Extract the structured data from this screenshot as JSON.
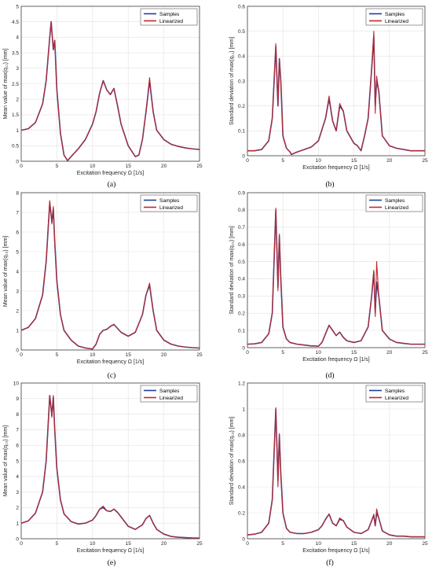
{
  "colors": {
    "samples": "#1f3f9e",
    "linearized": "#c0282a",
    "grid": "#e2e2e2",
    "axis": "#262626"
  },
  "chart_data": [
    {
      "type": "line",
      "panel_label": "(a)",
      "xlabel": "Excitation frequency Ω [1/s]",
      "ylabel": "Mean value of max(q₁₁) [mm]",
      "xlim": [
        0,
        25
      ],
      "ylim": [
        0,
        5
      ],
      "xticks": [
        "0",
        "5",
        "10",
        "15",
        "20",
        "25"
      ],
      "yticks": [
        "0",
        "0.5",
        "1",
        "1.5",
        "2",
        "2.5",
        "3",
        "3.5",
        "4",
        "4.5",
        "5"
      ],
      "grid": true,
      "legend_position": "top-right",
      "x": [
        0,
        1,
        2,
        3,
        3.5,
        4,
        4.2,
        4.5,
        4.7,
        5,
        5.5,
        6,
        6.5,
        7,
        8,
        9,
        10,
        10.5,
        11,
        11.5,
        12,
        12.5,
        13,
        13.5,
        14,
        15,
        16,
        16.5,
        17,
        17.5,
        18,
        18.5,
        19,
        20,
        21,
        22,
        23,
        24,
        25
      ],
      "series": [
        {
          "name": "Samples",
          "values": [
            1.0,
            1.05,
            1.25,
            1.85,
            2.6,
            4.0,
            4.5,
            3.6,
            3.9,
            2.3,
            0.9,
            0.2,
            0.02,
            0.15,
            0.4,
            0.7,
            1.2,
            1.6,
            2.2,
            2.6,
            2.3,
            2.15,
            2.35,
            1.8,
            1.2,
            0.5,
            0.15,
            0.2,
            0.7,
            1.6,
            2.6,
            1.6,
            1.0,
            0.7,
            0.55,
            0.48,
            0.43,
            0.4,
            0.38
          ]
        },
        {
          "name": "Linearized",
          "values": [
            1.0,
            1.05,
            1.25,
            1.85,
            2.6,
            4.0,
            4.5,
            3.6,
            3.9,
            2.3,
            0.9,
            0.2,
            0.02,
            0.15,
            0.4,
            0.7,
            1.2,
            1.6,
            2.2,
            2.6,
            2.3,
            2.15,
            2.35,
            1.8,
            1.2,
            0.5,
            0.15,
            0.2,
            0.7,
            1.6,
            2.7,
            1.6,
            1.0,
            0.7,
            0.55,
            0.48,
            0.43,
            0.4,
            0.38
          ]
        }
      ]
    },
    {
      "type": "line",
      "panel_label": "(b)",
      "xlabel": "Excitation frequency Ω [1/s]",
      "ylabel": "Standard deviation of max(q₁₁) [mm]",
      "xlim": [
        0,
        25
      ],
      "ylim": [
        0,
        0.6
      ],
      "xticks": [
        "0",
        "5",
        "10",
        "15",
        "20",
        "25"
      ],
      "yticks": [
        "0",
        "0.1",
        "0.2",
        "0.3",
        "0.4",
        "0.5",
        "0.6"
      ],
      "grid": true,
      "legend_position": "top-right",
      "x": [
        0,
        1,
        2,
        3,
        3.5,
        4,
        4.3,
        4.5,
        4.7,
        5,
        5.5,
        6,
        6.2,
        7,
        8,
        9,
        10,
        11,
        11.5,
        12,
        12.5,
        13,
        13.5,
        14,
        15,
        15.5,
        16,
        16.5,
        17,
        17.5,
        17.8,
        18,
        18.2,
        18.5,
        19,
        20,
        21,
        22,
        23,
        24,
        25
      ],
      "series": [
        {
          "name": "Samples",
          "values": [
            0.02,
            0.02,
            0.025,
            0.06,
            0.15,
            0.44,
            0.2,
            0.39,
            0.3,
            0.08,
            0.03,
            0.015,
            0.005,
            0.015,
            0.025,
            0.035,
            0.06,
            0.15,
            0.23,
            0.14,
            0.1,
            0.2,
            0.18,
            0.1,
            0.05,
            0.04,
            0.02,
            0.08,
            0.15,
            0.35,
            0.48,
            0.2,
            0.3,
            0.26,
            0.08,
            0.04,
            0.03,
            0.025,
            0.02,
            0.02,
            0.02
          ]
        },
        {
          "name": "Linearized",
          "values": [
            0.02,
            0.02,
            0.025,
            0.06,
            0.15,
            0.45,
            0.2,
            0.39,
            0.3,
            0.08,
            0.03,
            0.015,
            0.005,
            0.015,
            0.025,
            0.035,
            0.06,
            0.15,
            0.24,
            0.14,
            0.1,
            0.21,
            0.18,
            0.1,
            0.05,
            0.04,
            0.02,
            0.08,
            0.15,
            0.35,
            0.5,
            0.17,
            0.32,
            0.26,
            0.08,
            0.04,
            0.03,
            0.025,
            0.02,
            0.02,
            0.02
          ]
        }
      ]
    },
    {
      "type": "line",
      "panel_label": "(c)",
      "xlabel": "Excitation frequency Ω [1/s]",
      "ylabel": "Mean value of max(q₁₂) [mm]",
      "xlim": [
        0,
        25
      ],
      "ylim": [
        0,
        8
      ],
      "xticks": [
        "0",
        "5",
        "10",
        "15",
        "20",
        "25"
      ],
      "yticks": [
        "0",
        "1",
        "2",
        "3",
        "4",
        "5",
        "6",
        "7",
        "8"
      ],
      "grid": true,
      "legend_position": "top-right",
      "x": [
        0,
        1,
        2,
        3,
        3.5,
        4,
        4.3,
        4.5,
        4.7,
        5,
        5.5,
        6,
        7,
        8,
        9,
        10,
        10.5,
        11,
        11.5,
        12,
        12.5,
        13,
        13.5,
        14,
        15,
        16,
        17,
        17.5,
        18,
        18.5,
        19,
        20,
        21,
        22,
        23,
        24,
        25
      ],
      "series": [
        {
          "name": "Samples",
          "values": [
            1.0,
            1.15,
            1.6,
            2.8,
            4.5,
            7.5,
            6.5,
            7.2,
            5.5,
            3.5,
            1.8,
            1.0,
            0.5,
            0.2,
            0.1,
            0.05,
            0.3,
            0.8,
            1.0,
            1.05,
            1.2,
            1.3,
            1.1,
            0.9,
            0.7,
            0.9,
            1.8,
            2.8,
            3.3,
            2.0,
            1.0,
            0.5,
            0.3,
            0.2,
            0.15,
            0.12,
            0.1
          ]
        },
        {
          "name": "Linearized",
          "values": [
            1.0,
            1.15,
            1.6,
            2.8,
            4.5,
            7.6,
            6.4,
            7.3,
            5.5,
            3.5,
            1.8,
            1.0,
            0.5,
            0.2,
            0.1,
            0.05,
            0.3,
            0.8,
            1.0,
            1.05,
            1.2,
            1.3,
            1.1,
            0.9,
            0.7,
            0.9,
            1.8,
            2.8,
            3.4,
            2.0,
            1.0,
            0.5,
            0.3,
            0.2,
            0.15,
            0.12,
            0.1
          ]
        }
      ]
    },
    {
      "type": "line",
      "panel_label": "(d)",
      "xlabel": "Excitation frequency Ω [1/s]",
      "ylabel": "Standard deviation of max(q₁₂) [mm]",
      "xlim": [
        0,
        25
      ],
      "ylim": [
        0,
        0.9
      ],
      "xticks": [
        "0",
        "5",
        "10",
        "15",
        "20",
        "25"
      ],
      "yticks": [
        "0",
        "0.1",
        "0.2",
        "0.3",
        "0.4",
        "0.5",
        "0.6",
        "0.7",
        "0.8",
        "0.9"
      ],
      "grid": true,
      "legend_position": "top-right",
      "x": [
        0,
        1,
        2,
        3,
        3.5,
        4,
        4.3,
        4.5,
        4.7,
        5,
        5.5,
        6,
        7,
        8,
        9,
        9.5,
        10,
        10.5,
        11,
        11.5,
        12,
        12.5,
        13,
        13.5,
        14,
        15,
        16,
        17,
        17.5,
        17.8,
        18,
        18.2,
        18.5,
        19,
        20,
        21,
        22,
        23,
        24,
        25
      ],
      "series": [
        {
          "name": "Samples",
          "values": [
            0.02,
            0.022,
            0.03,
            0.08,
            0.2,
            0.8,
            0.35,
            0.65,
            0.4,
            0.12,
            0.05,
            0.03,
            0.02,
            0.015,
            0.01,
            0.01,
            0.008,
            0.03,
            0.08,
            0.13,
            0.1,
            0.07,
            0.09,
            0.06,
            0.04,
            0.03,
            0.04,
            0.12,
            0.3,
            0.44,
            0.2,
            0.38,
            0.3,
            0.1,
            0.05,
            0.03,
            0.025,
            0.02,
            0.02,
            0.02
          ]
        },
        {
          "name": "Linearized",
          "values": [
            0.02,
            0.022,
            0.03,
            0.08,
            0.2,
            0.81,
            0.33,
            0.66,
            0.4,
            0.12,
            0.05,
            0.03,
            0.02,
            0.015,
            0.01,
            0.01,
            0.008,
            0.03,
            0.08,
            0.13,
            0.1,
            0.07,
            0.09,
            0.06,
            0.04,
            0.03,
            0.04,
            0.12,
            0.3,
            0.45,
            0.18,
            0.5,
            0.3,
            0.1,
            0.05,
            0.03,
            0.025,
            0.02,
            0.02,
            0.02
          ]
        }
      ]
    },
    {
      "type": "line",
      "panel_label": "(e)",
      "xlabel": "Excitation frequency Ω [1/s]",
      "ylabel": "Mean value of max(q₁₃) [mm]",
      "xlim": [
        0,
        25
      ],
      "ylim": [
        0,
        10
      ],
      "xticks": [
        "0",
        "5",
        "10",
        "15",
        "20",
        "25"
      ],
      "yticks": [
        "0",
        "1",
        "2",
        "3",
        "4",
        "5",
        "6",
        "7",
        "8",
        "9",
        "10"
      ],
      "grid": true,
      "legend_position": "top-right",
      "x": [
        0,
        1,
        2,
        3,
        3.5,
        4,
        4.3,
        4.5,
        4.7,
        5,
        5.5,
        6,
        7,
        8,
        9,
        10,
        10.5,
        11,
        11.5,
        12,
        12.5,
        13,
        13.5,
        14,
        15,
        16,
        17,
        17.5,
        18,
        18.5,
        19,
        20,
        21,
        22,
        23,
        24,
        25
      ],
      "series": [
        {
          "name": "Samples",
          "values": [
            1.0,
            1.15,
            1.65,
            3.0,
            5.0,
            9.2,
            7.9,
            9.1,
            7.0,
            4.5,
            2.5,
            1.6,
            1.1,
            0.95,
            1.0,
            1.2,
            1.5,
            1.9,
            2.0,
            1.8,
            1.75,
            1.9,
            1.7,
            1.4,
            0.8,
            0.6,
            0.9,
            1.3,
            1.5,
            1.0,
            0.6,
            0.3,
            0.15,
            0.1,
            0.07,
            0.05,
            0.04
          ]
        },
        {
          "name": "Linearized",
          "values": [
            1.0,
            1.15,
            1.65,
            3.0,
            5.0,
            9.2,
            7.8,
            9.2,
            7.0,
            4.5,
            2.5,
            1.6,
            1.1,
            0.95,
            1.0,
            1.2,
            1.5,
            1.9,
            2.1,
            1.8,
            1.75,
            1.9,
            1.7,
            1.4,
            0.8,
            0.6,
            0.9,
            1.3,
            1.5,
            1.0,
            0.6,
            0.3,
            0.15,
            0.1,
            0.07,
            0.05,
            0.04
          ]
        }
      ]
    },
    {
      "type": "line",
      "panel_label": "(f)",
      "xlabel": "Excitation frequency Ω [1/s]",
      "ylabel": "Standard deviation of max(q₁₃) [mm]",
      "xlim": [
        0,
        25
      ],
      "ylim": [
        0,
        1.2
      ],
      "xticks": [
        "0",
        "5",
        "10",
        "15",
        "20",
        "25"
      ],
      "yticks": [
        "0",
        "0.2",
        "0.4",
        "0.6",
        "0.8",
        "1",
        "1.2"
      ],
      "grid": true,
      "legend_position": "top-right",
      "x": [
        0,
        1,
        2,
        3,
        3.5,
        4,
        4.3,
        4.5,
        4.7,
        5,
        5.5,
        6,
        7,
        8,
        9,
        10,
        10.5,
        11,
        11.5,
        12,
        12.5,
        13,
        13.5,
        14,
        15,
        16,
        17,
        17.5,
        17.8,
        18,
        18.2,
        18.5,
        19,
        20,
        21,
        22,
        23,
        24,
        25
      ],
      "series": [
        {
          "name": "Samples",
          "values": [
            0.03,
            0.035,
            0.05,
            0.12,
            0.3,
            1.0,
            0.45,
            0.8,
            0.5,
            0.2,
            0.08,
            0.05,
            0.04,
            0.04,
            0.05,
            0.07,
            0.1,
            0.15,
            0.19,
            0.12,
            0.1,
            0.15,
            0.14,
            0.09,
            0.05,
            0.04,
            0.07,
            0.14,
            0.18,
            0.1,
            0.2,
            0.16,
            0.06,
            0.03,
            0.02,
            0.02,
            0.015,
            0.015,
            0.015
          ]
        },
        {
          "name": "Linearized",
          "values": [
            0.03,
            0.035,
            0.05,
            0.12,
            0.3,
            1.01,
            0.4,
            0.81,
            0.5,
            0.2,
            0.08,
            0.05,
            0.04,
            0.04,
            0.05,
            0.07,
            0.1,
            0.15,
            0.19,
            0.12,
            0.1,
            0.16,
            0.14,
            0.09,
            0.05,
            0.04,
            0.07,
            0.14,
            0.19,
            0.1,
            0.23,
            0.16,
            0.06,
            0.03,
            0.02,
            0.02,
            0.015,
            0.015,
            0.015
          ]
        }
      ]
    }
  ]
}
